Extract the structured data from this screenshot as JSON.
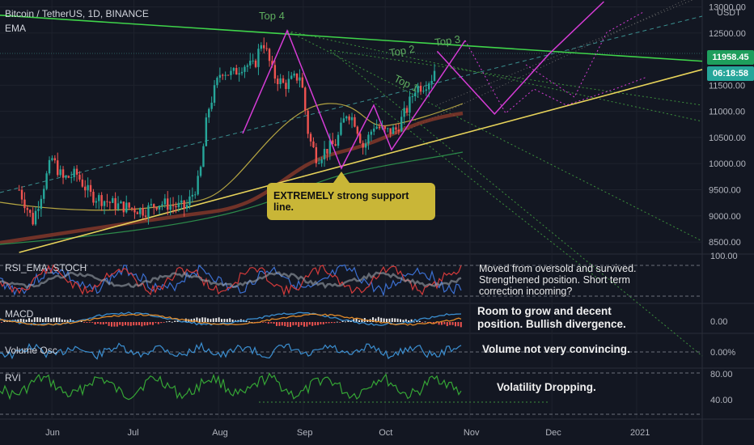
{
  "header": {
    "symbol_line": "Bitcoin / TetherUS, 1D, BINANCE",
    "indicator": "EMA",
    "currency": "USDT"
  },
  "price_tags": {
    "last_price": "11958.45",
    "countdown": "06:18:58",
    "last_color": "#26a69a",
    "trend_color": "#1e9e5c"
  },
  "annotations": {
    "support_callout": "EXTREMELY strong support line.",
    "rsi_note": "Moved from oversold and survived. Strengthened position. Short term correction incoming?",
    "macd_note": "Room to grow and decent position. Bullish divergence.",
    "volume_note": "Volume not very convincing.",
    "rvi_note": "Volatility Dropping.",
    "tops": [
      "Top 1",
      "Top 2",
      "Top 3",
      "Top 4"
    ]
  },
  "panes": {
    "rsi": {
      "label": "RSI_EMA_STOCH",
      "axis": "100.00"
    },
    "macd": {
      "label": "MACD",
      "axis": "0.00"
    },
    "volume": {
      "label": "Volume Osc",
      "axis": "0.00%"
    },
    "rvi": {
      "label": "RVI",
      "axis_top": "80.00",
      "axis_bottom": "40.00"
    }
  },
  "chart_data": {
    "type": "candlestick",
    "title": "Bitcoin / TetherUS, 1D, BINANCE",
    "y_axis_labels": [
      "13000.00",
      "12500.00",
      "12000.00",
      "11500.00",
      "11000.00",
      "10500.00",
      "10000.00",
      "9500.00",
      "9000.00",
      "8500.00"
    ],
    "ylim": [
      8300,
      13100
    ],
    "x_axis_labels": [
      "Jun",
      "Jul",
      "Aug",
      "Sep",
      "Oct",
      "Nov",
      "Dec",
      "2021"
    ],
    "close_path": [
      [
        "2020-05-20",
        9500
      ],
      [
        "2020-05-25",
        8900
      ],
      [
        "2020-06-01",
        10100
      ],
      [
        "2020-06-05",
        9700
      ],
      [
        "2020-06-10",
        9800
      ],
      [
        "2020-06-15",
        9400
      ],
      [
        "2020-06-20",
        9300
      ],
      [
        "2020-06-25",
        9200
      ],
      [
        "2020-06-30",
        9150
      ],
      [
        "2020-07-05",
        9100
      ],
      [
        "2020-07-10",
        9250
      ],
      [
        "2020-07-15",
        9200
      ],
      [
        "2020-07-20",
        9150
      ],
      [
        "2020-07-25",
        9700
      ],
      [
        "2020-07-28",
        11000
      ],
      [
        "2020-08-02",
        11800
      ],
      [
        "2020-08-06",
        11700
      ],
      [
        "2020-08-10",
        11900
      ],
      [
        "2020-08-14",
        11850
      ],
      [
        "2020-08-17",
        12400
      ],
      [
        "2020-08-21",
        11700
      ],
      [
        "2020-08-25",
        11500
      ],
      [
        "2020-08-31",
        11700
      ],
      [
        "2020-09-03",
        10500
      ],
      [
        "2020-09-06",
        10100
      ],
      [
        "2020-09-09",
        10250
      ],
      [
        "2020-09-13",
        10400
      ],
      [
        "2020-09-17",
        11000
      ],
      [
        "2020-09-20",
        10800
      ],
      [
        "2020-09-23",
        10300
      ],
      [
        "2020-09-27",
        10750
      ],
      [
        "2020-10-01",
        10600
      ],
      [
        "2020-10-05",
        10650
      ],
      [
        "2020-10-09",
        11050
      ],
      [
        "2020-10-12",
        11450
      ],
      [
        "2020-10-15",
        11500
      ],
      [
        "2020-10-18",
        11650
      ],
      [
        "2020-10-20",
        11950
      ]
    ],
    "trend_lines": [
      {
        "name": "resistance (green)",
        "from": [
          "2020-05-10",
          12850
        ],
        "to": [
          "2021-01-25",
          11960
        ]
      },
      {
        "name": "support (yellow)",
        "from": [
          "2020-05-20",
          8300
        ],
        "to": [
          "2021-01-25",
          11800
        ]
      }
    ],
    "projection_path": [
      [
        "2020-10-20",
        12150
      ],
      [
        "2020-11-10",
        10950
      ],
      [
        "2020-11-30",
        12100
      ],
      [
        "2020-12-20",
        13100
      ]
    ]
  }
}
